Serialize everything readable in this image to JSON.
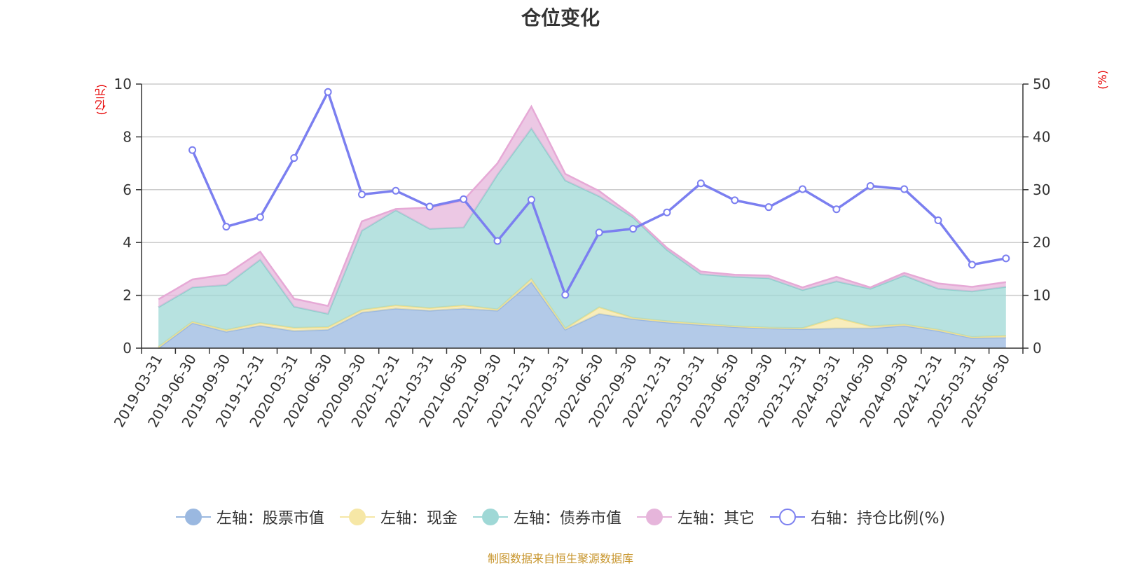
{
  "legend": [
    "左轴：股票市值",
    "左轴：现金",
    "左轴：债券市值",
    "左轴：其它",
    "右轴：持仓比例(%)"
  ],
  "source": "制图数据来自恒生聚源数据库",
  "chart_data": {
    "type": "area",
    "title": "仓位变化",
    "ylabel": "(亿元)",
    "y2label": "(%)",
    "ylim": [
      0,
      10
    ],
    "y2lim": [
      0,
      50
    ],
    "yticks": [
      0,
      2,
      4,
      6,
      8,
      10
    ],
    "y2ticks": [
      0,
      10,
      20,
      30,
      40,
      50
    ],
    "grid": true,
    "legend_position": "bottom",
    "categories": [
      "2019-03-31",
      "2019-06-30",
      "2019-09-30",
      "2019-12-31",
      "2020-03-31",
      "2020-06-30",
      "2020-09-30",
      "2020-12-31",
      "2021-03-31",
      "2021-06-30",
      "2021-09-30",
      "2021-12-31",
      "2022-03-31",
      "2022-06-30",
      "2022-09-30",
      "2022-12-31",
      "2023-03-31",
      "2023-06-30",
      "2023-09-30",
      "2023-12-31",
      "2024-03-31",
      "2024-06-30",
      "2024-09-30",
      "2024-12-31",
      "2025-03-31",
      "2025-06-30"
    ],
    "colors": {
      "stock": "#9ab8e0",
      "cash": "#f6e7a6",
      "bond": "#9fd8d6",
      "other": "#e6b5db",
      "ratio": "#7b7ff0"
    },
    "series": [
      {
        "name": "左轴：股票市值",
        "axis": "left",
        "values": [
          0,
          0.95,
          0.62,
          0.85,
          0.65,
          0.7,
          1.35,
          1.5,
          1.42,
          1.5,
          1.42,
          2.5,
          0.7,
          1.3,
          1.1,
          0.97,
          0.88,
          0.8,
          0.75,
          0.72,
          0.75,
          0.75,
          0.85,
          0.65,
          0.38,
          0.4
        ]
      },
      {
        "name": "左轴：现金",
        "axis": "left",
        "values": [
          0.05,
          0.05,
          0.07,
          0.1,
          0.12,
          0.1,
          0.1,
          0.12,
          0.1,
          0.12,
          0.05,
          0.12,
          0.05,
          0.25,
          0.05,
          0.05,
          0.05,
          0.03,
          0.03,
          0.04,
          0.4,
          0.08,
          0.05,
          0.05,
          0.04,
          0.07
        ]
      },
      {
        "name": "左轴：债券市值",
        "axis": "left",
        "values": [
          1.5,
          1.3,
          1.7,
          2.4,
          0.8,
          0.5,
          3.0,
          3.6,
          3.0,
          2.95,
          5.1,
          5.7,
          5.6,
          4.2,
          3.8,
          2.7,
          1.87,
          1.87,
          1.87,
          1.44,
          1.38,
          1.42,
          1.85,
          1.55,
          1.73,
          1.85
        ]
      },
      {
        "name": "左轴：其它",
        "axis": "left",
        "values": [
          0.3,
          0.3,
          0.4,
          0.3,
          0.3,
          0.3,
          0.35,
          0.05,
          0.8,
          1.03,
          0.43,
          0.83,
          0.25,
          0.2,
          0.05,
          0.08,
          0.1,
          0.08,
          0.1,
          0.1,
          0.17,
          0.05,
          0.1,
          0.2,
          0.17,
          0.18
        ]
      },
      {
        "name": "右轴：持仓比例(%)",
        "axis": "right",
        "values": [
          null,
          37.5,
          23.0,
          24.8,
          36.0,
          48.5,
          29.1,
          29.8,
          26.8,
          28.2,
          20.3,
          28.1,
          10.1,
          21.9,
          22.6,
          25.7,
          31.2,
          28.0,
          26.7,
          30.1,
          26.3,
          30.7,
          30.1,
          24.2,
          15.8,
          17.0
        ]
      }
    ]
  }
}
